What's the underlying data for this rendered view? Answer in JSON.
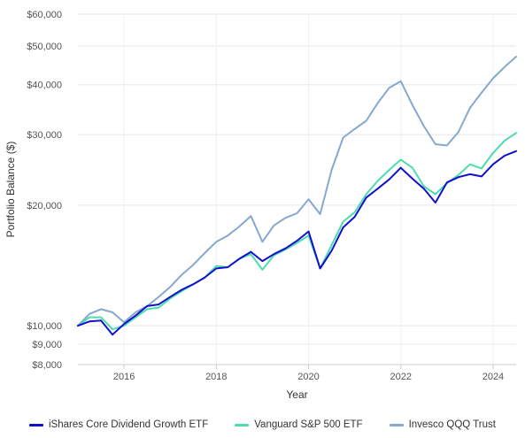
{
  "chart_data": {
    "type": "line",
    "title": "",
    "xlabel": "Year",
    "ylabel": "Portfolio Balance ($)",
    "y_scale": "log",
    "xlim": [
      2015.0,
      2024.5
    ],
    "ylim": [
      8000,
      60000
    ],
    "x_ticks": [
      2016,
      2018,
      2020,
      2022,
      2024
    ],
    "x_tick_labels": [
      "2016",
      "2018",
      "2020",
      "2022",
      "2024"
    ],
    "y_ticks": [
      8000,
      9000,
      10000,
      20000,
      30000,
      40000,
      50000,
      60000
    ],
    "y_tick_labels": [
      "$8,000",
      "$9,000",
      "$10,000",
      "$20,000",
      "$30,000",
      "$40,000",
      "$50,000",
      "$60,000"
    ],
    "grid": true,
    "legend_position": "bottom",
    "series": [
      {
        "name": "iShares Core Dividend Growth ETF",
        "color": "#1111cc",
        "points": [
          [
            2015.0,
            10000
          ],
          [
            2015.25,
            10250
          ],
          [
            2015.5,
            10300
          ],
          [
            2015.75,
            9500
          ],
          [
            2016.0,
            10100
          ],
          [
            2016.25,
            10600
          ],
          [
            2016.5,
            11200
          ],
          [
            2016.75,
            11300
          ],
          [
            2017.0,
            11800
          ],
          [
            2017.25,
            12300
          ],
          [
            2017.5,
            12700
          ],
          [
            2017.75,
            13200
          ],
          [
            2018.0,
            13900
          ],
          [
            2018.25,
            14000
          ],
          [
            2018.5,
            14700
          ],
          [
            2018.75,
            15300
          ],
          [
            2019.0,
            14500
          ],
          [
            2019.25,
            15100
          ],
          [
            2019.5,
            15600
          ],
          [
            2019.75,
            16300
          ],
          [
            2020.0,
            17200
          ],
          [
            2020.25,
            13900
          ],
          [
            2020.5,
            15400
          ],
          [
            2020.75,
            17600
          ],
          [
            2021.0,
            18700
          ],
          [
            2021.25,
            20900
          ],
          [
            2021.5,
            22000
          ],
          [
            2021.75,
            23200
          ],
          [
            2022.0,
            24800
          ],
          [
            2022.25,
            23300
          ],
          [
            2022.5,
            22000
          ],
          [
            2022.75,
            20300
          ],
          [
            2023.0,
            22800
          ],
          [
            2023.25,
            23500
          ],
          [
            2023.5,
            23900
          ],
          [
            2023.75,
            23600
          ],
          [
            2024.0,
            25300
          ],
          [
            2024.25,
            26600
          ],
          [
            2024.5,
            27300
          ]
        ]
      },
      {
        "name": "Vanguard S&P 500 ETF",
        "color": "#4ddbb0",
        "points": [
          [
            2015.0,
            10000
          ],
          [
            2015.25,
            10500
          ],
          [
            2015.5,
            10500
          ],
          [
            2015.75,
            9800
          ],
          [
            2016.0,
            10000
          ],
          [
            2016.25,
            10500
          ],
          [
            2016.5,
            11000
          ],
          [
            2016.75,
            11100
          ],
          [
            2017.0,
            11700
          ],
          [
            2017.25,
            12200
          ],
          [
            2017.5,
            12700
          ],
          [
            2017.75,
            13200
          ],
          [
            2018.0,
            14100
          ],
          [
            2018.25,
            14000
          ],
          [
            2018.5,
            14700
          ],
          [
            2018.75,
            15100
          ],
          [
            2019.0,
            13800
          ],
          [
            2019.25,
            15000
          ],
          [
            2019.5,
            15500
          ],
          [
            2019.75,
            16100
          ],
          [
            2020.0,
            16800
          ],
          [
            2020.25,
            13900
          ],
          [
            2020.5,
            15900
          ],
          [
            2020.75,
            18200
          ],
          [
            2021.0,
            19200
          ],
          [
            2021.25,
            21300
          ],
          [
            2021.5,
            23000
          ],
          [
            2021.75,
            24500
          ],
          [
            2022.0,
            26000
          ],
          [
            2022.25,
            24800
          ],
          [
            2022.5,
            22300
          ],
          [
            2022.75,
            21300
          ],
          [
            2023.0,
            22700
          ],
          [
            2023.25,
            23800
          ],
          [
            2023.5,
            25300
          ],
          [
            2023.75,
            24700
          ],
          [
            2024.0,
            27000
          ],
          [
            2024.25,
            29000
          ],
          [
            2024.5,
            30300
          ]
        ]
      },
      {
        "name": "Invesco QQQ Trust",
        "color": "#86a8cf",
        "points": [
          [
            2015.0,
            10000
          ],
          [
            2015.25,
            10700
          ],
          [
            2015.5,
            11000
          ],
          [
            2015.75,
            10800
          ],
          [
            2016.0,
            10200
          ],
          [
            2016.25,
            10800
          ],
          [
            2016.5,
            11200
          ],
          [
            2016.75,
            11800
          ],
          [
            2017.0,
            12500
          ],
          [
            2017.25,
            13400
          ],
          [
            2017.5,
            14200
          ],
          [
            2017.75,
            15200
          ],
          [
            2018.0,
            16200
          ],
          [
            2018.25,
            16800
          ],
          [
            2018.5,
            17700
          ],
          [
            2018.75,
            18800
          ],
          [
            2019.0,
            16200
          ],
          [
            2019.25,
            17800
          ],
          [
            2019.5,
            18600
          ],
          [
            2019.75,
            19100
          ],
          [
            2020.0,
            20700
          ],
          [
            2020.25,
            19000
          ],
          [
            2020.5,
            24500
          ],
          [
            2020.75,
            29500
          ],
          [
            2021.0,
            31000
          ],
          [
            2021.25,
            32500
          ],
          [
            2021.5,
            36000
          ],
          [
            2021.75,
            39300
          ],
          [
            2022.0,
            40800
          ],
          [
            2022.25,
            35600
          ],
          [
            2022.5,
            31500
          ],
          [
            2022.75,
            28400
          ],
          [
            2023.0,
            28200
          ],
          [
            2023.25,
            30500
          ],
          [
            2023.5,
            35000
          ],
          [
            2023.75,
            38200
          ],
          [
            2024.0,
            41500
          ],
          [
            2024.25,
            44300
          ],
          [
            2024.5,
            47000
          ]
        ]
      }
    ]
  }
}
